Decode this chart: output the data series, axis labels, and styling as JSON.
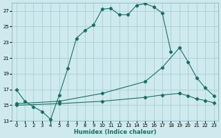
{
  "xlabel": "Humidex (Indice chaleur)",
  "background_color": "#ceeaee",
  "grid_color": "#aacdd5",
  "line_color": "#1a6e62",
  "xlim": [
    -0.5,
    23.5
  ],
  "ylim": [
    13,
    28
  ],
  "xticks": [
    0,
    1,
    2,
    3,
    4,
    5,
    6,
    7,
    8,
    9,
    10,
    11,
    12,
    13,
    14,
    15,
    16,
    17,
    18,
    19,
    20,
    21,
    22,
    23
  ],
  "yticks": [
    13,
    15,
    17,
    19,
    21,
    23,
    25,
    27
  ],
  "line1_x": [
    0,
    1,
    2,
    3,
    4,
    5,
    6,
    7,
    8,
    9,
    10,
    11,
    12,
    13,
    14,
    15,
    16,
    17,
    18
  ],
  "line1_y": [
    17,
    15.5,
    14.8,
    14.2,
    13.2,
    16.3,
    19.7,
    23.5,
    24.5,
    25.2,
    27.2,
    27.3,
    26.5,
    26.5,
    27.7,
    27.9,
    27.5,
    26.7,
    21.8
  ],
  "line2_x": [
    0,
    5,
    10,
    15,
    17,
    19,
    20,
    21,
    22,
    23
  ],
  "line2_y": [
    15.2,
    15.5,
    16.5,
    18.0,
    19.8,
    22.3,
    20.5,
    18.5,
    17.2,
    16.2
  ],
  "line3_x": [
    0,
    5,
    10,
    15,
    17,
    19,
    20,
    21,
    22,
    23
  ],
  "line3_y": [
    15.0,
    15.2,
    15.5,
    16.0,
    16.3,
    16.5,
    16.2,
    15.8,
    15.6,
    15.3
  ]
}
